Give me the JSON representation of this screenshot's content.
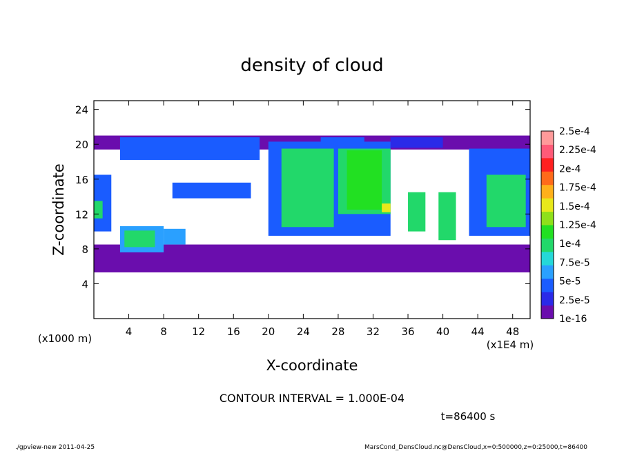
{
  "chart_data": {
    "type": "heatmap",
    "title": "density of cloud",
    "xlabel": "X-coordinate",
    "ylabel": "Z-coordinate",
    "x_unit_label": "(x1E4 m)",
    "y_unit_label": "(x1000 m)",
    "xlim": [
      0,
      50
    ],
    "ylim": [
      0,
      25
    ],
    "x_ticks": [
      4,
      8,
      12,
      16,
      20,
      24,
      28,
      32,
      36,
      40,
      44,
      48
    ],
    "y_ticks": [
      4,
      8,
      12,
      16,
      20,
      24
    ],
    "contour_interval_text": "CONTOUR INTERVAL = 1.000E-04",
    "time_text": "t=86400 s",
    "colorbar": {
      "labels": [
        "1e-16",
        "2.5e-5",
        "5e-5",
        "7.5e-5",
        "1e-4",
        "1.25e-4",
        "1.5e-4",
        "1.75e-4",
        "2e-4",
        "2.25e-4",
        "2.5e-4"
      ],
      "colors": [
        "#6a0dad",
        "#2a2ae8",
        "#1a5cff",
        "#2aa0ff",
        "#25d8d8",
        "#22d86a",
        "#22e022",
        "#8fe01a",
        "#e8e81a",
        "#ffb01a",
        "#ff6a1a",
        "#ff2020",
        "#ff5a78",
        "#ff9a9a"
      ]
    },
    "regions": [
      {
        "x": [
          0,
          50
        ],
        "z": [
          5.3,
          8.5
        ],
        "level": 0
      },
      {
        "x": [
          0,
          50
        ],
        "z": [
          19.4,
          21
        ],
        "level": 0
      },
      {
        "x": [
          3,
          19
        ],
        "z": [
          18.2,
          20.8
        ],
        "level": 2
      },
      {
        "x": [
          26,
          31
        ],
        "z": [
          19.4,
          20.8
        ],
        "level": 2
      },
      {
        "x": [
          34,
          40
        ],
        "z": [
          19.6,
          20.8
        ],
        "level": 1
      },
      {
        "x": [
          9,
          18
        ],
        "z": [
          13.8,
          15.6
        ],
        "level": 2
      },
      {
        "x": [
          20,
          34
        ],
        "z": [
          9.5,
          20.3
        ],
        "level": 2
      },
      {
        "x": [
          21.5,
          27.5
        ],
        "z": [
          10.5,
          19.5
        ],
        "level": 5
      },
      {
        "x": [
          28,
          34
        ],
        "z": [
          12,
          19.5
        ],
        "level": 5
      },
      {
        "x": [
          29,
          33
        ],
        "z": [
          12.5,
          19.3
        ],
        "level": 6
      },
      {
        "x": [
          33,
          34
        ],
        "z": [
          12.2,
          13.2
        ],
        "level": 8
      },
      {
        "x": [
          3,
          8
        ],
        "z": [
          7.6,
          10.6
        ],
        "level": 3
      },
      {
        "x": [
          3.5,
          7
        ],
        "z": [
          8.2,
          10.1
        ],
        "level": 5
      },
      {
        "x": [
          8,
          10.5
        ],
        "z": [
          8.5,
          10.3
        ],
        "level": 3
      },
      {
        "x": [
          36,
          38
        ],
        "z": [
          10,
          14.5
        ],
        "level": 5
      },
      {
        "x": [
          39.5,
          41.5
        ],
        "z": [
          9,
          14.5
        ],
        "level": 5
      },
      {
        "x": [
          43,
          50
        ],
        "z": [
          9.5,
          19.5
        ],
        "level": 2
      },
      {
        "x": [
          45,
          49.5
        ],
        "z": [
          10.5,
          16.5
        ],
        "level": 5
      },
      {
        "x": [
          0,
          2
        ],
        "z": [
          10,
          16.5
        ],
        "level": 2
      },
      {
        "x": [
          0,
          1
        ],
        "z": [
          11.5,
          13.5
        ],
        "level": 5
      }
    ]
  },
  "footer": {
    "left": "./gpview-new   2011-04-25",
    "right": "MarsCond_DensCloud.nc@DensCloud,x=0:500000,z=0:25000,t=86400"
  }
}
